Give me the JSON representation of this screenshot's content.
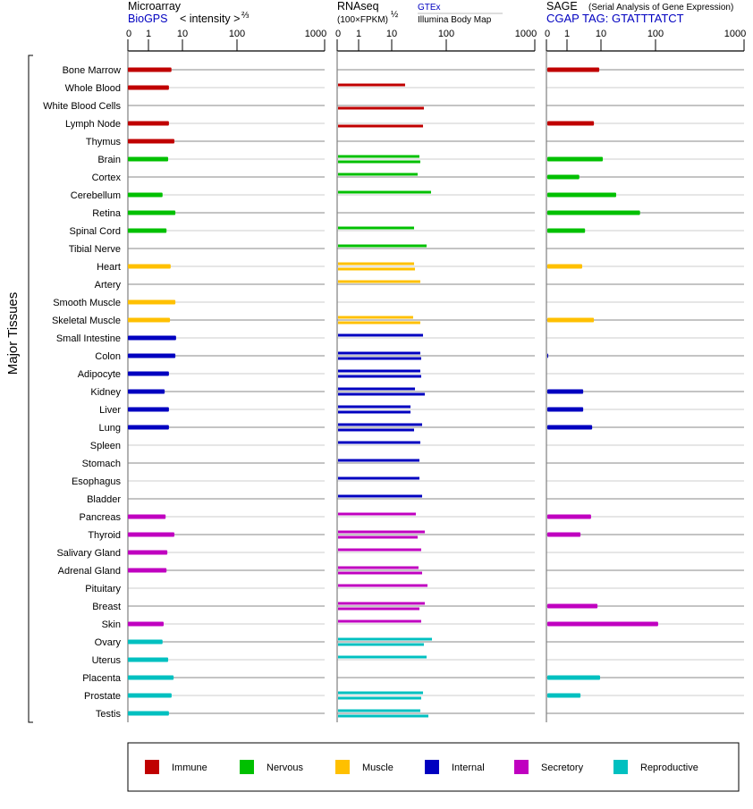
{
  "y_axis_title": "Major Tissues",
  "panels": {
    "microarray": {
      "title": "Microarray",
      "source": "BioGPS",
      "unit": "< intensity >",
      "unit_exp": "⅔"
    },
    "rnaseq": {
      "title": "RNAseq",
      "unit": "(100×FPKM)",
      "unit_exp": "½",
      "source_top": "GTEx",
      "source_bottom": "Illumina Body Map"
    },
    "sage": {
      "title": "SAGE",
      "subtitle": "(Serial Analysis of Gene Expression)",
      "tag": "CGAP TAG: GTATTTATCT"
    }
  },
  "legend": [
    {
      "label": "Immune",
      "color": "#c00000"
    },
    {
      "label": "Nervous",
      "color": "#00c000"
    },
    {
      "label": "Muscle",
      "color": "#ffc000"
    },
    {
      "label": "Internal",
      "color": "#0000c0"
    },
    {
      "label": "Secretory",
      "color": "#c000c0"
    },
    {
      "label": "Reproductive",
      "color": "#00c0c0"
    }
  ],
  "chart_data": {
    "type": "bar",
    "orientation": "horizontal",
    "axis_ticks": [
      "0",
      "1",
      "10",
      "100",
      "1000"
    ],
    "xlim": [
      0,
      1000
    ],
    "grid": true,
    "legend_placement": "bottom",
    "series_names": [
      "Microarray (BioGPS)",
      "RNAseq GTEx",
      "RNAseq Illumina Body Map",
      "SAGE"
    ],
    "tissues": [
      {
        "name": "Bone Marrow",
        "group": "Immune",
        "microarray": 4.75,
        "gtex": null,
        "illumina": null,
        "sage": 8.9
      },
      {
        "name": "Whole Blood",
        "group": "Immune",
        "microarray": 4.0,
        "gtex": 17.6,
        "illumina": null,
        "sage": null
      },
      {
        "name": "White Blood Cells",
        "group": "Immune",
        "microarray": null,
        "gtex": null,
        "illumina": 38.9,
        "sage": null
      },
      {
        "name": "Lymph Node",
        "group": "Immune",
        "microarray": 4.0,
        "gtex": null,
        "illumina": 37.5,
        "sage": 6.2
      },
      {
        "name": "Thymus",
        "group": "Immune",
        "microarray": 5.8,
        "gtex": null,
        "illumina": null,
        "sage": null
      },
      {
        "name": "Brain",
        "group": "Nervous",
        "microarray": 3.8,
        "gtex": 32.2,
        "illumina": 33.4,
        "sage": 10.8
      },
      {
        "name": "Cortex",
        "group": "Nervous",
        "microarray": null,
        "gtex": 29.9,
        "illumina": null,
        "sage": 2.3
      },
      {
        "name": "Cerebellum",
        "group": "Nervous",
        "microarray": 2.6,
        "gtex": 52.6,
        "illumina": null,
        "sage": 19
      },
      {
        "name": "Retina",
        "group": "Nervous",
        "microarray": 6.2,
        "gtex": null,
        "illumina": null,
        "sage": 52
      },
      {
        "name": "Spinal Cord",
        "group": "Nervous",
        "microarray": 3.4,
        "gtex": 25.7,
        "illumina": null,
        "sage": 3.4
      },
      {
        "name": "Tibial Nerve",
        "group": "Nervous",
        "microarray": null,
        "gtex": 43.6,
        "illumina": null,
        "sage": null
      },
      {
        "name": "Heart",
        "group": "Muscle",
        "microarray": 4.5,
        "gtex": 25.7,
        "illumina": 26.7,
        "sage": 2.8
      },
      {
        "name": "Artery",
        "group": "Muscle",
        "microarray": null,
        "gtex": 33.4,
        "illumina": null,
        "sage": null
      },
      {
        "name": "Smooth Muscle",
        "group": "Muscle",
        "microarray": 6.2,
        "gtex": null,
        "illumina": null,
        "sage": null
      },
      {
        "name": "Skeletal Muscle",
        "group": "Muscle",
        "microarray": 4.3,
        "gtex": 24.7,
        "illumina": 33.4,
        "sage": 6.2
      },
      {
        "name": "Small Intestine",
        "group": "Internal",
        "microarray": 6.5,
        "gtex": 37.5,
        "illumina": null,
        "sage": null
      },
      {
        "name": "Colon",
        "group": "Internal",
        "microarray": 6.2,
        "gtex": 33.4,
        "illumina": 34.7,
        "sage": 0.05
      },
      {
        "name": "Adipocyte",
        "group": "Internal",
        "microarray": 4.0,
        "gtex": 33.4,
        "illumina": 34.7,
        "sage": null
      },
      {
        "name": "Kidney",
        "group": "Internal",
        "microarray": 3.0,
        "gtex": 26.7,
        "illumina": 40.5,
        "sage": 3.0
      },
      {
        "name": "Liver",
        "group": "Internal",
        "microarray": 4.0,
        "gtex": 22.1,
        "illumina": 22.1,
        "sage": 3.0
      },
      {
        "name": "Lung",
        "group": "Internal",
        "microarray": 4.0,
        "gtex": 36.1,
        "illumina": 25.7,
        "sage": 5.5
      },
      {
        "name": "Spleen",
        "group": "Internal",
        "microarray": null,
        "gtex": 33.4,
        "illumina": null,
        "sage": null
      },
      {
        "name": "Stomach",
        "group": "Internal",
        "microarray": null,
        "gtex": 32.2,
        "illumina": null,
        "sage": null
      },
      {
        "name": "Esophagus",
        "group": "Internal",
        "microarray": null,
        "gtex": 32.2,
        "illumina": null,
        "sage": null
      },
      {
        "name": "Bladder",
        "group": "Internal",
        "microarray": null,
        "gtex": 36.1,
        "illumina": null,
        "sage": null
      },
      {
        "name": "Pancreas",
        "group": "Secretory",
        "microarray": 3.2,
        "gtex": 27.7,
        "illumina": null,
        "sage": 5.1
      },
      {
        "name": "Thyroid",
        "group": "Secretory",
        "microarray": 5.8,
        "gtex": 40.5,
        "illumina": 29.9,
        "sage": 2.5
      },
      {
        "name": "Salivary Gland",
        "group": "Secretory",
        "microarray": 3.6,
        "gtex": 34.7,
        "illumina": null,
        "sage": null
      },
      {
        "name": "Adrenal Gland",
        "group": "Secretory",
        "microarray": 3.4,
        "gtex": 31.0,
        "illumina": 36.1,
        "sage": null
      },
      {
        "name": "Pituitary",
        "group": "Secretory",
        "microarray": null,
        "gtex": 45.3,
        "illumina": null,
        "sage": null
      },
      {
        "name": "Breast",
        "group": "Secretory",
        "microarray": null,
        "gtex": 40.5,
        "illumina": 32.2,
        "sage": 7.9
      },
      {
        "name": "Skin",
        "group": "Secretory",
        "microarray": 2.8,
        "gtex": 34.7,
        "illumina": null,
        "sage": 107
      },
      {
        "name": "Ovary",
        "group": "Reproductive",
        "microarray": 2.6,
        "gtex": 54.7,
        "illumina": 38.9,
        "sage": null
      },
      {
        "name": "Uterus",
        "group": "Reproductive",
        "microarray": 3.8,
        "gtex": 43.6,
        "illumina": null,
        "sage": null
      },
      {
        "name": "Placenta",
        "group": "Reproductive",
        "microarray": 5.5,
        "gtex": null,
        "illumina": null,
        "sage": 9.4
      },
      {
        "name": "Prostate",
        "group": "Reproductive",
        "microarray": 4.8,
        "gtex": 37.5,
        "illumina": 34.7,
        "sage": 2.5
      },
      {
        "name": "Testis",
        "group": "Reproductive",
        "microarray": 4.0,
        "gtex": 33.4,
        "illumina": 47.0,
        "sage": null
      }
    ]
  }
}
